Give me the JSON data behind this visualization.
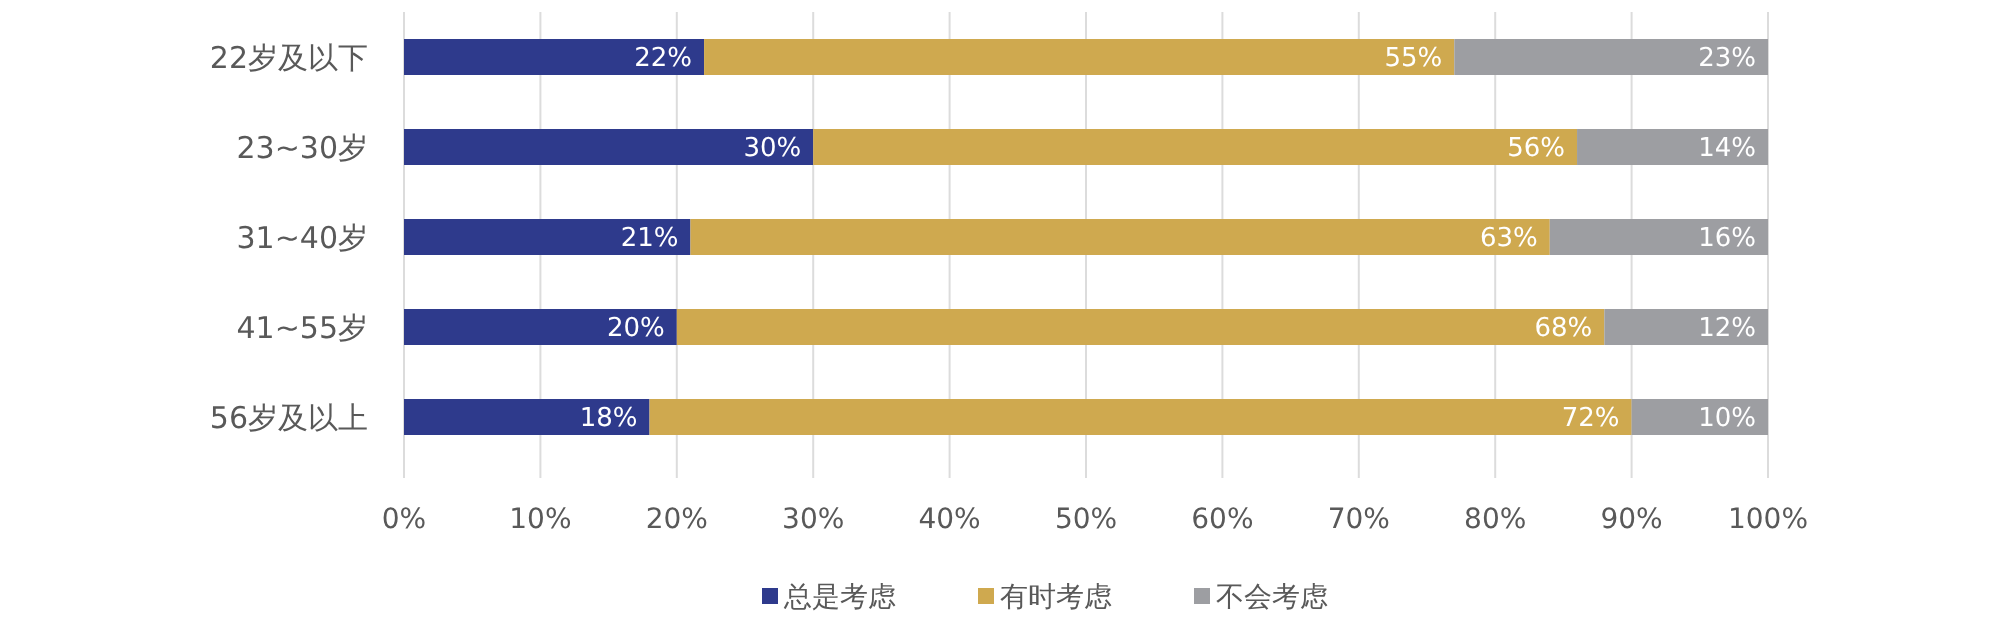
{
  "chart_data": {
    "type": "bar",
    "orientation": "horizontal",
    "stacked": true,
    "categories": [
      "22岁及以下",
      "23~30岁",
      "31~40岁",
      "41~55岁",
      "56岁及以上"
    ],
    "series": [
      {
        "name": "总是考虑",
        "color": "#2e3a8c",
        "values": [
          22,
          30,
          21,
          20,
          18
        ],
        "value_labels": [
          "22%",
          "30%",
          "21%",
          "20%",
          "18%"
        ]
      },
      {
        "name": "有时考虑",
        "color": "#cfa94f",
        "values": [
          55,
          56,
          63,
          68,
          72
        ],
        "value_labels": [
          "55%",
          "56%",
          "63%",
          "68%",
          "72%"
        ]
      },
      {
        "name": "不会考虑",
        "color": "#9d9ea2",
        "values": [
          23,
          14,
          16,
          12,
          10
        ],
        "value_labels": [
          "23%",
          "14%",
          "16%",
          "12%",
          "10%"
        ]
      }
    ],
    "xlim": [
      0,
      100
    ],
    "xticks": [
      {
        "value": 0,
        "label": "0%"
      },
      {
        "value": 10,
        "label": "10%"
      },
      {
        "value": 20,
        "label": "20%"
      },
      {
        "value": 30,
        "label": "30%"
      },
      {
        "value": 40,
        "label": "40%"
      },
      {
        "value": 50,
        "label": "50%"
      },
      {
        "value": 60,
        "label": "60%"
      },
      {
        "value": 70,
        "label": "70%"
      },
      {
        "value": 80,
        "label": "80%"
      },
      {
        "value": 90,
        "label": "90%"
      },
      {
        "value": 100,
        "label": "100%"
      }
    ],
    "grid": "x",
    "legend": "bottom"
  }
}
